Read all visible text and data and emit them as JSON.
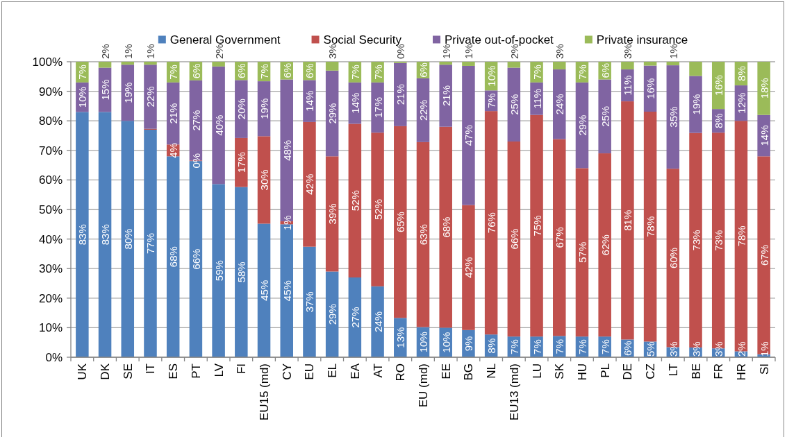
{
  "chart_data": {
    "type": "bar",
    "stacked": true,
    "legend": "top",
    "grid": "y",
    "categories": [
      "UK",
      "DK",
      "SE",
      "IT",
      "ES",
      "PT",
      "LV",
      "FI",
      "EU15 (md)",
      "CY",
      "EU",
      "EL",
      "EA",
      "AT",
      "RO",
      "EU (md)",
      "EE",
      "BG",
      "NL",
      "EU13 (md)",
      "LU",
      "SK",
      "HU",
      "PL",
      "DE",
      "CZ",
      "LT",
      "BE",
      "FR",
      "HR",
      "SI"
    ],
    "series": [
      {
        "name": "General Government",
        "color": "#4f81bd",
        "values": [
          83,
          83,
          80,
          77,
          68,
          66.4,
          58.6,
          57.6,
          45.2,
          45,
          37.4,
          29,
          27,
          24,
          13.3,
          10.2,
          10,
          9.2,
          7.7,
          7,
          7,
          7.2,
          7,
          7,
          6,
          5.3,
          3.4,
          3.3,
          3,
          2,
          1
        ],
        "value_labels": [
          "83%",
          "83%",
          "80%",
          "77%",
          "68%",
          "66%",
          "59%",
          "58%",
          "45%",
          "45%",
          "37%",
          "29%",
          "27%",
          "24%",
          "13%",
          "10%",
          "10%",
          "9%",
          "8%",
          "7%",
          "7%",
          "7%",
          "7%",
          "7%",
          "6%",
          "5%",
          "3%",
          "3%",
          "3%",
          "2%",
          "1%"
        ]
      },
      {
        "name": "Social Security",
        "color": "#c0504d",
        "values": [
          null,
          null,
          null,
          0.3,
          4,
          0.2,
          null,
          16.6,
          29.6,
          1,
          42.2,
          39,
          52,
          52,
          64.9,
          62.6,
          68,
          42.3,
          75.6,
          66,
          75,
          66.6,
          57,
          62,
          80.6,
          77.8,
          60.4,
          72.6,
          73,
          78,
          67
        ],
        "value_labels": [
          null,
          null,
          null,
          null,
          "4%",
          "0%",
          null,
          "17%",
          "30%",
          "1%",
          "42%",
          "39%",
          "52%",
          "52%",
          "65%",
          "63%",
          "68%",
          "42%",
          "76%",
          "66%",
          "75%",
          "67%",
          "57%",
          "62%",
          "81%",
          "78%",
          "60%",
          "73%",
          "73%",
          "78%",
          "67%"
        ]
      },
      {
        "name": "Private out-of-pocket",
        "color": "#8064a2",
        "values": [
          10,
          15,
          19,
          21.7,
          21,
          27.1,
          39.8,
          19.6,
          18.6,
          48,
          14.2,
          29,
          14,
          17,
          21.4,
          21.6,
          21,
          47.1,
          7,
          25,
          11,
          23.6,
          29,
          25,
          10.8,
          15.6,
          35,
          19.3,
          8,
          12,
          14
        ],
        "value_labels": [
          "10%",
          "15%",
          "19%",
          "22%",
          "21%",
          "27%",
          "40%",
          "20%",
          "19%",
          "48%",
          "14%",
          "29%",
          "14%",
          "17%",
          "21%",
          "22%",
          "21%",
          "47%",
          "7%",
          "25%",
          "11%",
          "24%",
          "29%",
          "25%",
          "11%",
          "16%",
          "35%",
          "19%",
          "8%",
          "12%",
          "14%"
        ]
      },
      {
        "name": "Private insurance",
        "color": "#9bbb59",
        "values": [
          7,
          2,
          1,
          1,
          7,
          6.3,
          1.6,
          6.2,
          6.6,
          6,
          6.2,
          3,
          7,
          7,
          0.4,
          5.6,
          1,
          1.4,
          9.7,
          2,
          7,
          2.6,
          7,
          6,
          2.6,
          1.3,
          1.2,
          4.8,
          16,
          8,
          18
        ],
        "value_labels": [
          "7%",
          "2%",
          "1%",
          "1%",
          "7%",
          "6%",
          "2%",
          "6%",
          "7%",
          "6%",
          "6%",
          "3%",
          "7%",
          "7%",
          "0%",
          "6%",
          "1%",
          "1%",
          "10%",
          "2%",
          "7%",
          "3%",
          "7%",
          "6%",
          "3%",
          null,
          "1%",
          null,
          "16%",
          "8%",
          "18%"
        ]
      }
    ],
    "ylim": [
      0,
      100
    ],
    "yticks": [
      {
        "value": 0,
        "label": "0%"
      },
      {
        "value": 10,
        "label": "10%"
      },
      {
        "value": 20,
        "label": "20%"
      },
      {
        "value": 30,
        "label": "30%"
      },
      {
        "value": 40,
        "label": "40%"
      },
      {
        "value": 50,
        "label": "50%"
      },
      {
        "value": 60,
        "label": "60%"
      },
      {
        "value": 70,
        "label": "70%"
      },
      {
        "value": 80,
        "label": "80%"
      },
      {
        "value": 90,
        "label": "90%"
      },
      {
        "value": 100,
        "label": "100%"
      }
    ]
  }
}
